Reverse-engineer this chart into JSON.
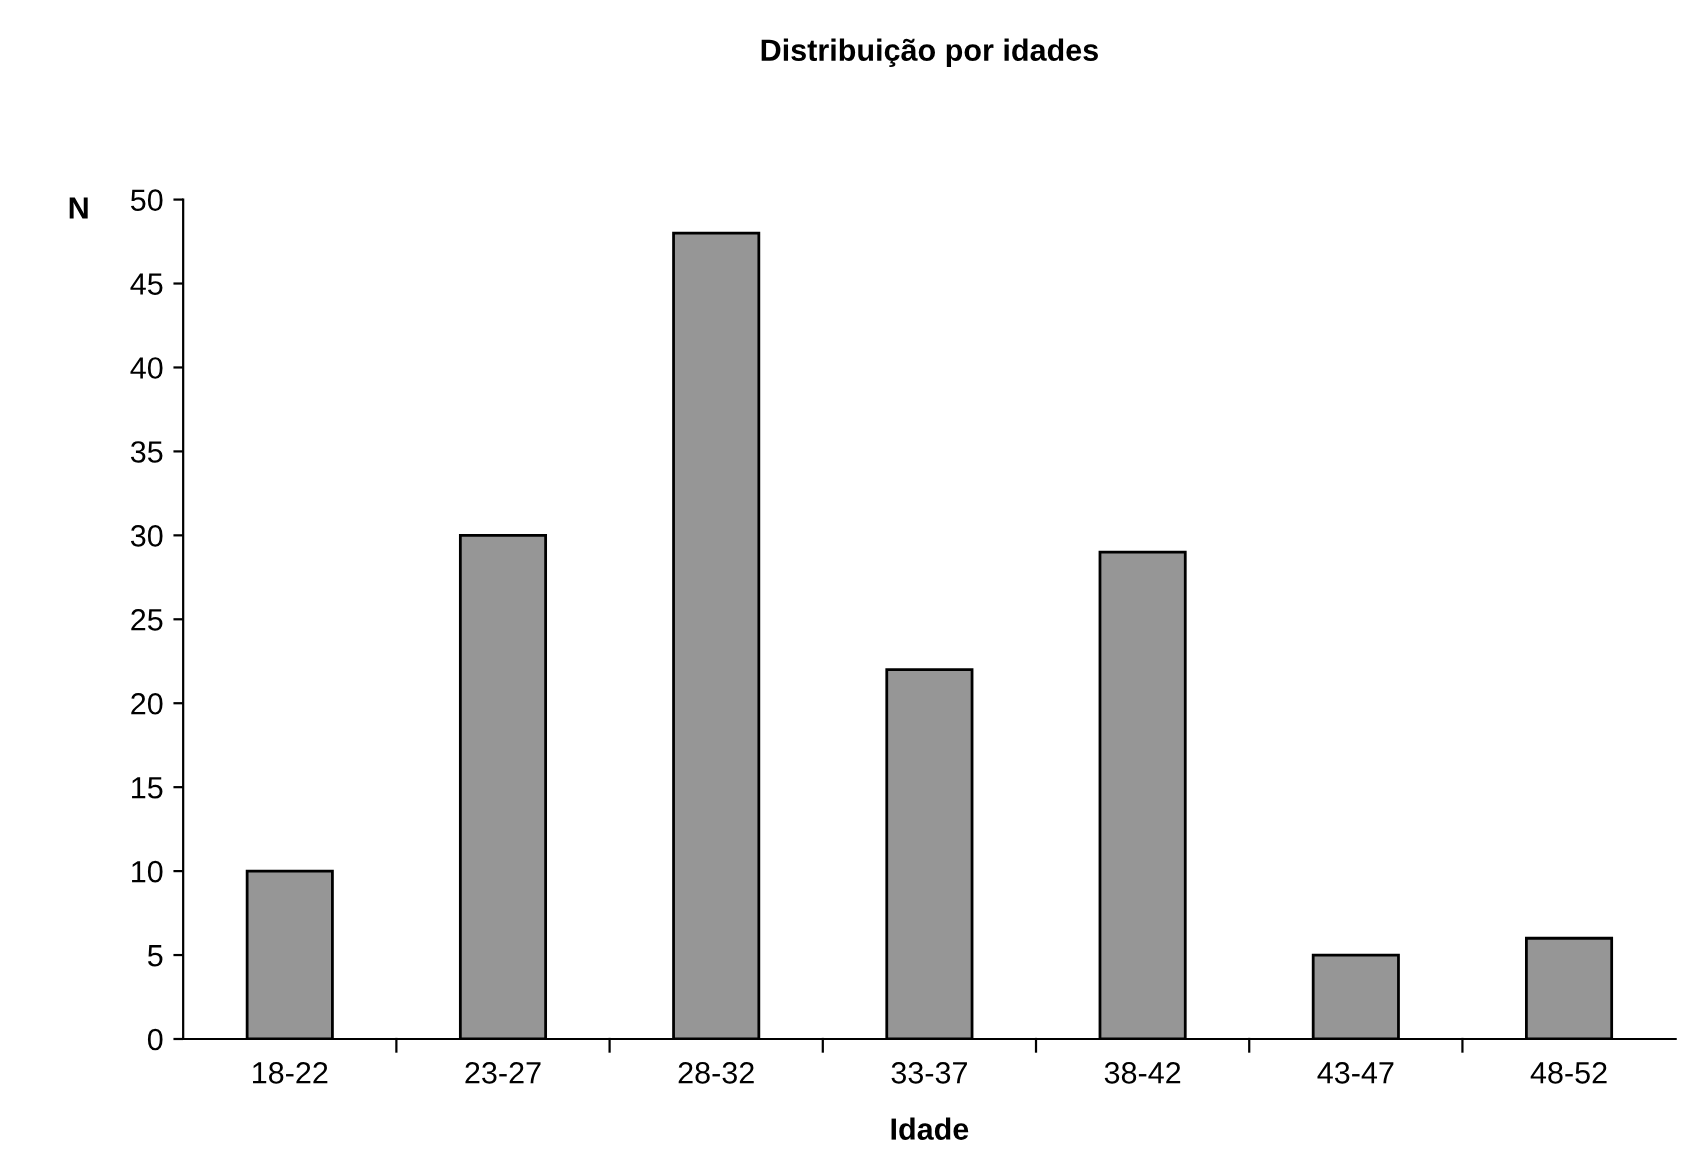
{
  "chart_data": {
    "type": "bar",
    "title": "Distribuição por idades",
    "xlabel": "Idade",
    "ylabel": "N",
    "categories": [
      "18-22",
      "23-27",
      "28-32",
      "33-37",
      "38-42",
      "43-47",
      "48-52"
    ],
    "values": [
      10,
      30,
      48,
      22,
      29,
      5,
      6
    ],
    "color": "#969696",
    "ylim": [
      0,
      50
    ],
    "yticks": [
      0,
      5,
      10,
      15,
      20,
      25,
      30,
      35,
      40,
      45,
      50
    ],
    "grid": false
  }
}
